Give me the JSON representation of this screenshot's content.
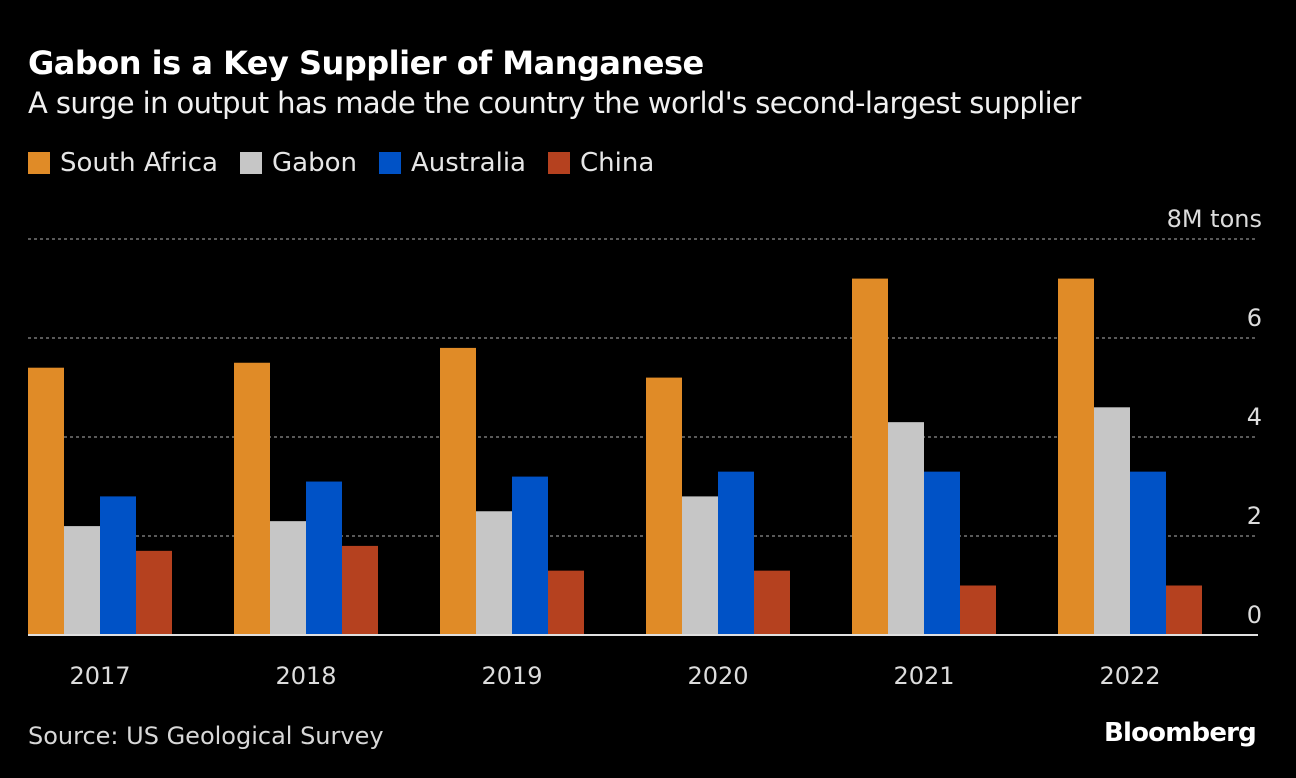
{
  "chart_data": {
    "type": "bar",
    "title": "Gabon is a Key Supplier of Manganese",
    "subtitle": "A surge in output has made the country the world's second-largest supplier",
    "categories": [
      "2017",
      "2018",
      "2019",
      "2020",
      "2021",
      "2022"
    ],
    "series": [
      {
        "name": "South Africa",
        "color": "#e08b27",
        "values": [
          5.4,
          5.5,
          5.8,
          5.2,
          7.2,
          7.2
        ]
      },
      {
        "name": "Gabon",
        "color": "#c6c6c6",
        "values": [
          2.2,
          2.3,
          2.5,
          2.8,
          4.3,
          4.6
        ]
      },
      {
        "name": "Australia",
        "color": "#0052c6",
        "values": [
          2.8,
          3.1,
          3.2,
          3.3,
          3.3,
          3.3
        ]
      },
      {
        "name": "China",
        "color": "#b5411f",
        "values": [
          1.7,
          1.8,
          1.3,
          1.3,
          1.0,
          1.0
        ]
      }
    ],
    "ylim": [
      0,
      8
    ],
    "yticks": [
      "0",
      "2",
      "4",
      "6",
      "8M tons"
    ],
    "ytick_values": [
      0,
      2,
      4,
      6,
      8
    ],
    "grid": true,
    "legend": "top-left",
    "source": "Source: US Geological Survey",
    "brand": "Bloomberg"
  }
}
